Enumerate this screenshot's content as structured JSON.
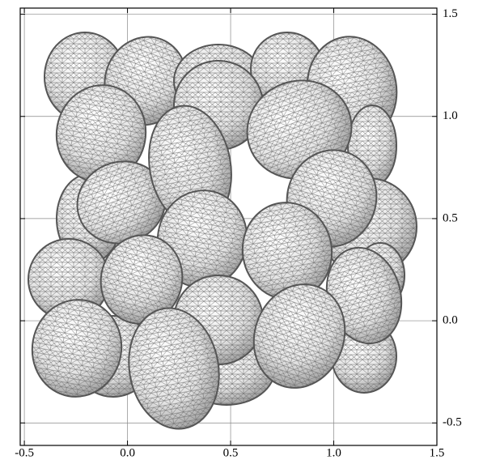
{
  "chart_data": {
    "type": "image",
    "xlim": [
      -0.52,
      1.5
    ],
    "ylim": [
      -0.61,
      1.53
    ],
    "xticks": [
      -0.5,
      {
        "value": 0,
        "label": "0.0"
      },
      0.5,
      {
        "value": 1,
        "label": "1.0"
      },
      1.5
    ],
    "yticks": [
      -0.5,
      {
        "value": 0,
        "label": "0.0"
      },
      0.5,
      {
        "value": 1,
        "label": "1.0"
      },
      1.5
    ],
    "grid": true
  }
}
